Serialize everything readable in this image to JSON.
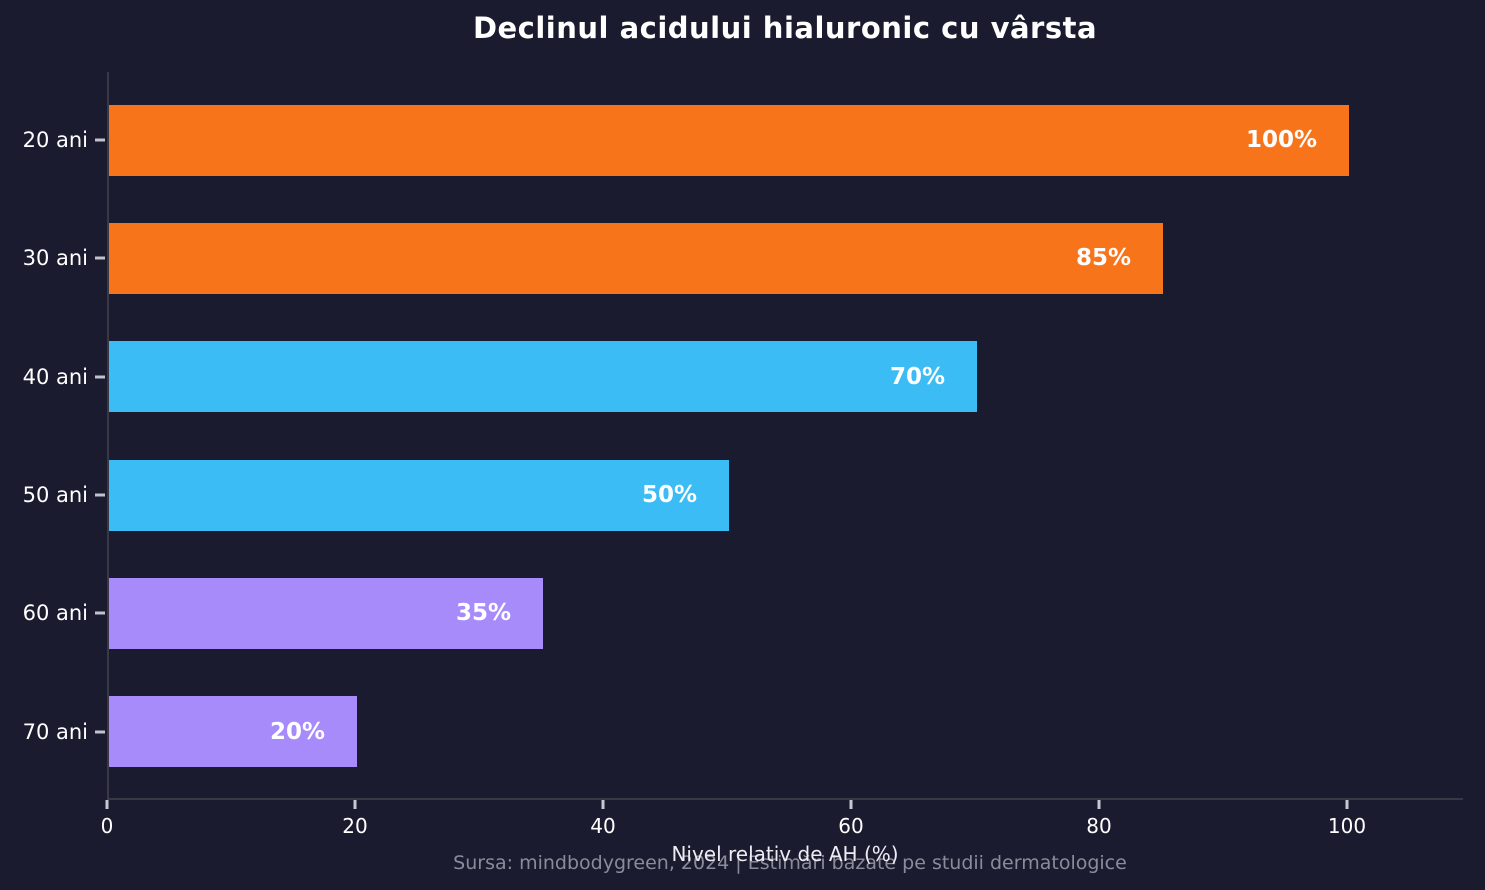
{
  "title": "Declinul acidului hialuronic cu vârsta",
  "chart_data": {
    "type": "bar",
    "orientation": "horizontal",
    "title": "Declinul acidului hialuronic cu vârsta",
    "categories": [
      "20 ani",
      "30 ani",
      "40 ani",
      "50 ani",
      "60 ani",
      "70 ani"
    ],
    "values": [
      100,
      85,
      70,
      50,
      35,
      20
    ],
    "value_labels": [
      "100%",
      "85%",
      "70%",
      "50%",
      "35%",
      "20%"
    ],
    "bar_colors": [
      "#f7741b",
      "#f7741b",
      "#3bbcf5",
      "#3bbcf5",
      "#a78bfa",
      "#a78bfa"
    ],
    "xlabel": "Nivel relativ de AH (%)",
    "ylabel": "",
    "xlim": [
      0,
      109.4
    ],
    "xticks": [
      0,
      20,
      40,
      60,
      80,
      100
    ],
    "grid": false,
    "legend": false
  },
  "footer": {
    "source_text": "Sursa: mindbodygreen, 2024 | Estimări bazate pe studii dermatologice"
  },
  "colors": {
    "background": "#1a1b2e",
    "axis": "#383945",
    "tick_mark": "#c8c9d2",
    "text": "#ffffff",
    "muted_text": "#8b8c9a",
    "bar_orange": "#f7741b",
    "bar_blue": "#3bbcf5",
    "bar_purple": "#a78bfa"
  }
}
